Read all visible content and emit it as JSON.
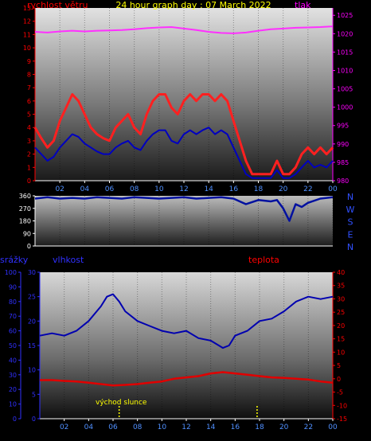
{
  "title": "24 hour graph day : 07 March 2022",
  "colors": {
    "wind": "#ff2020",
    "gust": "#0000c0",
    "pressure": "#ff30ff",
    "direction": "#0010a0",
    "humidity": "#0000b0",
    "temperature": "#e00000",
    "sunrise": "#ffff00",
    "label_red": "#ff0000",
    "label_yellow": "#ffff00",
    "label_blue": "#3030ff",
    "label_magenta": "#ff00ff"
  },
  "chart_data": [
    {
      "id": "wind",
      "type": "line",
      "title": "24 hour graph day : 07 March 2022",
      "left_label": "rychlost větru",
      "right_label": "tlak",
      "ylim": [
        0,
        13
      ],
      "y2lim": [
        980,
        1027
      ],
      "y_ticks": [
        "0",
        "1",
        "2",
        "3",
        "4",
        "5",
        "6",
        "7",
        "8",
        "9",
        "10",
        "11",
        "12",
        "13"
      ],
      "y2_ticks": [
        "980",
        "985",
        "990",
        "995",
        "1000",
        "1005",
        "1010",
        "1015",
        "1020",
        "1025"
      ],
      "x_ticks": [
        "02",
        "04",
        "06",
        "08",
        "10",
        "12",
        "14",
        "16",
        "18",
        "20",
        "22",
        "00"
      ],
      "series": [
        {
          "key": "wind",
          "axis": "left",
          "x": [
            0,
            0.5,
            1,
            1.5,
            2,
            2.5,
            3,
            3.5,
            4,
            4.5,
            5,
            5.5,
            6,
            6.5,
            7,
            7.5,
            8,
            8.5,
            9,
            9.5,
            10,
            10.5,
            11,
            11.5,
            12,
            12.5,
            13,
            13.5,
            14,
            14.5,
            15,
            15.5,
            16,
            16.5,
            17,
            17.5,
            18,
            18.5,
            19,
            19.5,
            20,
            20.5,
            21,
            21.5,
            22,
            22.5,
            23,
            23.5,
            24
          ],
          "values": [
            4,
            3.2,
            2.5,
            3,
            4.5,
            5.5,
            6.5,
            6,
            5,
            4,
            3.5,
            3.2,
            3,
            4,
            4.5,
            5,
            4,
            3.5,
            5,
            6,
            6.5,
            6.5,
            5.5,
            5,
            6,
            6.5,
            6,
            6.5,
            6.5,
            6,
            6.5,
            6,
            4.5,
            3,
            1.5,
            0.5,
            0.5,
            0.5,
            0.5,
            1.5,
            0.5,
            0.5,
            1,
            2,
            2.5,
            2,
            2.5,
            2,
            2.5
          ]
        },
        {
          "key": "gust",
          "axis": "left",
          "x": [
            0,
            0.5,
            1,
            1.5,
            2,
            2.5,
            3,
            3.5,
            4,
            4.5,
            5,
            5.5,
            6,
            6.5,
            7,
            7.5,
            8,
            8.5,
            9,
            9.5,
            10,
            10.5,
            11,
            11.5,
            12,
            12.5,
            13,
            13.5,
            14,
            14.5,
            15,
            15.5,
            16,
            16.5,
            17,
            17.5,
            18,
            18.5,
            19,
            19.5,
            20,
            20.5,
            21,
            21.5,
            22,
            22.5,
            23,
            23.5,
            24
          ],
          "values": [
            2.5,
            2,
            1.5,
            1.8,
            2.5,
            3,
            3.5,
            3.3,
            2.8,
            2.5,
            2.2,
            2,
            2,
            2.5,
            2.8,
            3,
            2.5,
            2.3,
            3,
            3.5,
            3.8,
            3.8,
            3,
            2.8,
            3.5,
            3.8,
            3.5,
            3.8,
            4,
            3.5,
            3.8,
            3.5,
            2.5,
            1.5,
            0.5,
            0.2,
            0.2,
            0.2,
            0.2,
            0.8,
            0.2,
            0.2,
            0.5,
            1,
            1.5,
            1,
            1.2,
            1,
            1.5
          ]
        },
        {
          "key": "pressure",
          "axis": "right",
          "x": [
            0,
            1,
            2,
            3,
            4,
            5,
            6,
            7,
            8,
            9,
            10,
            11,
            12,
            13,
            14,
            15,
            16,
            17,
            18,
            19,
            20,
            21,
            22,
            23,
            24
          ],
          "values": [
            1020.5,
            1020.3,
            1020.6,
            1020.8,
            1020.6,
            1020.8,
            1020.9,
            1021,
            1021.2,
            1021.5,
            1021.7,
            1021.8,
            1021.4,
            1021,
            1020.5,
            1020.2,
            1020.1,
            1020.3,
            1020.8,
            1021.2,
            1021.4,
            1021.6,
            1021.7,
            1021.8,
            1022
          ]
        }
      ]
    },
    {
      "id": "direction",
      "type": "line",
      "ylim": [
        0,
        360
      ],
      "y_ticks": [
        "0",
        "90",
        "180",
        "270",
        "360"
      ],
      "compass_labels": [
        "N",
        "W",
        "S",
        "E",
        "N"
      ],
      "x_ticks": [
        "02",
        "04",
        "06",
        "08",
        "10",
        "12",
        "14",
        "16",
        "18",
        "20",
        "22",
        "00"
      ],
      "series": [
        {
          "key": "direction",
          "x": [
            0,
            1,
            2,
            3,
            4,
            5,
            6,
            7,
            8,
            9,
            10,
            11,
            12,
            13,
            14,
            15,
            16,
            17,
            18,
            19,
            19.5,
            20,
            20.5,
            21,
            21.5,
            22,
            23,
            24
          ],
          "values": [
            340,
            350,
            340,
            345,
            340,
            350,
            345,
            340,
            350,
            345,
            340,
            345,
            350,
            340,
            345,
            350,
            340,
            300,
            330,
            320,
            330,
            270,
            180,
            300,
            280,
            310,
            340,
            350
          ]
        }
      ]
    },
    {
      "id": "weather",
      "type": "line",
      "left_label": "srážky",
      "middle_label": "vlhkost",
      "right_label": "teplota",
      "sunrise_label": "východ slunce",
      "sunrise_x": 6.5,
      "sunset_x": 17.8,
      "ylim": [
        0,
        100
      ],
      "y2lim": [
        0,
        30
      ],
      "y3lim": [
        -15,
        40
      ],
      "y_ticks": [
        "0",
        "10",
        "20",
        "30",
        "40",
        "50",
        "60",
        "70",
        "80",
        "90",
        "100"
      ],
      "y2_ticks": [
        "0",
        "5",
        "10",
        "15",
        "20",
        "25",
        "30"
      ],
      "y3_ticks": [
        "-15",
        "-10",
        "-5",
        "0",
        "5",
        "10",
        "15",
        "20",
        "25",
        "30",
        "35",
        "40"
      ],
      "x_ticks": [
        "02",
        "04",
        "06",
        "08",
        "10",
        "12",
        "14",
        "16",
        "18",
        "20",
        "22",
        "00"
      ],
      "series": [
        {
          "key": "humidity",
          "axis": "right",
          "x": [
            0,
            1,
            2,
            3,
            4,
            5,
            5.5,
            6,
            6.5,
            7,
            8,
            9,
            10,
            11,
            12,
            13,
            14,
            15,
            15.5,
            16,
            17,
            18,
            19,
            20,
            21,
            22,
            23,
            24
          ],
          "values": [
            17,
            17.5,
            17,
            18,
            20,
            23,
            25,
            25.5,
            24,
            22,
            20,
            19,
            18,
            17.5,
            18,
            16.5,
            16,
            14.5,
            15,
            17,
            18,
            20,
            20.5,
            22,
            24,
            25,
            24.5,
            25
          ]
        },
        {
          "key": "temperature",
          "axis": "right2",
          "x": [
            0,
            1,
            2,
            3,
            4,
            5,
            6,
            7,
            8,
            9,
            10,
            11,
            12,
            13,
            14,
            15,
            16,
            17,
            18,
            19,
            20,
            21,
            22,
            23,
            24
          ],
          "values": [
            -0.5,
            -0.5,
            -0.8,
            -1,
            -1.5,
            -2,
            -2.5,
            -2.3,
            -2,
            -1.5,
            -1,
            0,
            0.5,
            1,
            2,
            2.5,
            2,
            1.5,
            1,
            0.5,
            0.3,
            0,
            -0.3,
            -1,
            -1.5
          ]
        }
      ]
    }
  ]
}
